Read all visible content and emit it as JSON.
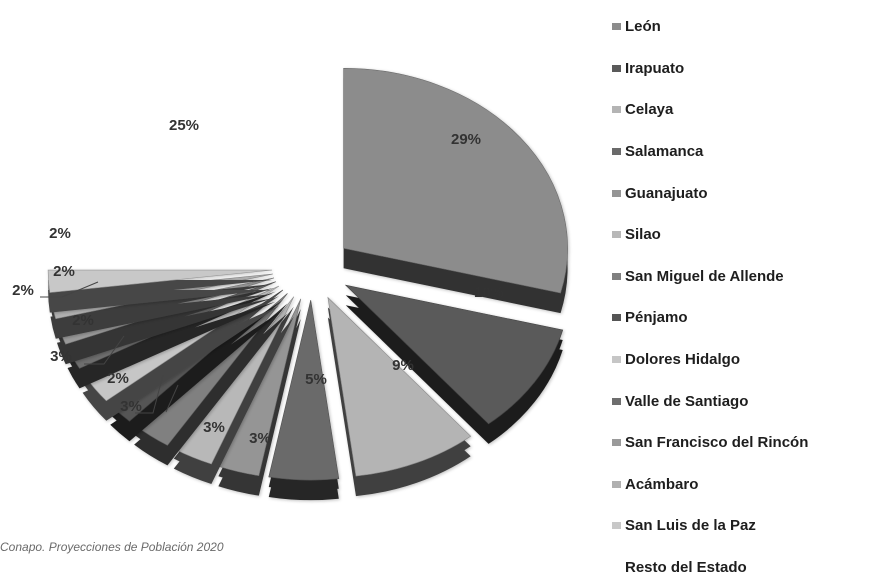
{
  "chart_data": {
    "type": "pie",
    "style": "3d-exploded",
    "legend_position": "right",
    "series": [
      {
        "name": "León",
        "value": 29,
        "label": "29%",
        "color": "#8c8c8c"
      },
      {
        "name": "Irapuato",
        "value": 10,
        "label": "10%",
        "color": "#5a5a5a"
      },
      {
        "name": "Celaya",
        "value": 9,
        "label": "9%",
        "color": "#b4b4b4"
      },
      {
        "name": "Salamanca",
        "value": 5,
        "label": "5%",
        "color": "#6a6a6a"
      },
      {
        "name": "Guanajuato",
        "value": 3,
        "label": "3%",
        "color": "#959595"
      },
      {
        "name": "Silao",
        "value": 3,
        "label": "3%",
        "color": "#b8b8b8"
      },
      {
        "name": "San Miguel de Allende",
        "value": 3,
        "label": "3%",
        "color": "#808080"
      },
      {
        "name": "Pénjamo",
        "value": 2,
        "label": "2%",
        "color": "#555555"
      },
      {
        "name": "Dolores Hidalgo",
        "value": 3,
        "label": "3%",
        "color": "#c6c6c6"
      },
      {
        "name": "Valle de Santiago",
        "value": 2,
        "label": "2%",
        "color": "#6e6e6e"
      },
      {
        "name": "San Francisco del Rincón",
        "value": 2,
        "label": "2%",
        "color": "#9a9a9a"
      },
      {
        "name": "Acámbaro",
        "value": 2,
        "label": "2%",
        "color": "#b0b0b0"
      },
      {
        "name": "San Luis de la Paz",
        "value": 2,
        "label": "2%",
        "color": "#c8c8c8"
      },
      {
        "name": "Resto del Estado",
        "value": 25,
        "label": "25%",
        "color": "#ffffff"
      }
    ]
  },
  "source_note": "Conapo. Proyecciones de Población 2020"
}
